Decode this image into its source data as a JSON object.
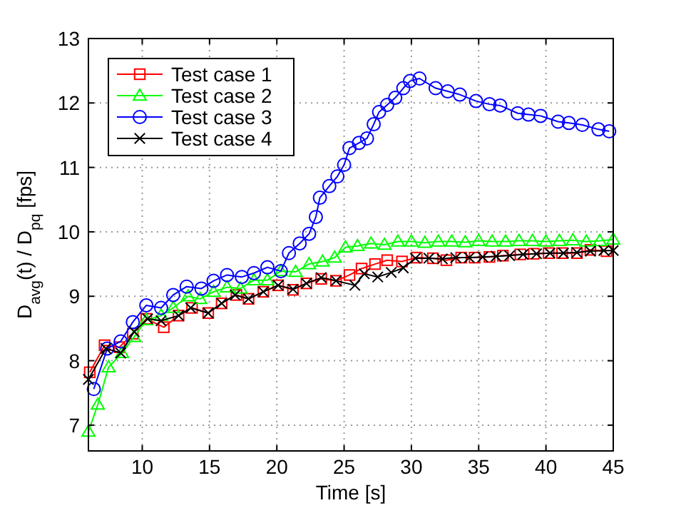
{
  "chart_data": {
    "type": "line",
    "xlabel": "Time [s]",
    "ylabel": "D$_{avg}$(t) / D$_{pq}$ [fps]",
    "xlim": [
      6,
      45
    ],
    "ylim": [
      6.6,
      13
    ],
    "xticks": [
      10,
      15,
      20,
      25,
      30,
      35,
      40,
      45
    ],
    "yticks": [
      7,
      8,
      9,
      10,
      11,
      12,
      13
    ],
    "grid": true,
    "legend": "top left",
    "series": [
      {
        "name": "Test case 1",
        "color": "#ff0000",
        "marker": "square",
        "x": [
          6.1,
          7.2,
          8.3,
          9.3,
          10.3,
          11.6,
          12.7,
          13.7,
          14.9,
          15.9,
          17.0,
          17.9,
          19.0,
          20.1,
          21.2,
          22.2,
          23.3,
          24.4,
          25.4,
          26.3,
          27.3,
          28.2,
          29.3,
          30.4,
          31.6,
          32.6,
          33.7,
          34.7,
          35.8,
          36.8,
          38.1,
          39.1,
          40.2,
          41.2,
          42.3,
          43.3,
          44.5
        ],
        "values": [
          7.82,
          8.24,
          8.21,
          8.42,
          8.65,
          8.52,
          8.7,
          8.82,
          8.74,
          8.89,
          9.02,
          8.96,
          9.07,
          9.17,
          9.1,
          9.2,
          9.27,
          9.24,
          9.33,
          9.43,
          9.5,
          9.56,
          9.54,
          9.6,
          9.59,
          9.56,
          9.6,
          9.6,
          9.61,
          9.63,
          9.65,
          9.66,
          9.67,
          9.67,
          9.67,
          9.72,
          9.7
        ]
      },
      {
        "name": "Test case 2",
        "color": "#00ff00",
        "marker": "triangle",
        "x": [
          6.0,
          6.7,
          7.5,
          8.5,
          9.4,
          10.3,
          11.4,
          12.3,
          13.4,
          14.3,
          15.3,
          16.3,
          17.3,
          18.3,
          19.3,
          20.3,
          21.4,
          22.4,
          23.4,
          24.3,
          25.1,
          26.0,
          27.0,
          28.0,
          29.0,
          30.0,
          31.0,
          32.0,
          33.0,
          34.0,
          35.0,
          36.0,
          37.0,
          38.0,
          39.0,
          40.0,
          41.0,
          42.0,
          43.0,
          44.0,
          45.0
        ],
        "values": [
          6.9,
          7.32,
          7.9,
          8.12,
          8.37,
          8.63,
          8.7,
          8.82,
          9.0,
          8.96,
          9.07,
          9.14,
          9.12,
          9.25,
          9.25,
          9.39,
          9.38,
          9.5,
          9.54,
          9.6,
          9.76,
          9.78,
          9.82,
          9.8,
          9.85,
          9.85,
          9.83,
          9.85,
          9.85,
          9.84,
          9.86,
          9.85,
          9.85,
          9.86,
          9.86,
          9.85,
          9.86,
          9.87,
          9.85,
          9.86,
          9.88
        ]
      },
      {
        "name": "Test case 3",
        "color": "#0000ff",
        "marker": "circle",
        "x": [
          6.4,
          7.4,
          8.4,
          9.3,
          10.3,
          11.4,
          12.3,
          13.3,
          14.4,
          15.3,
          16.3,
          17.4,
          18.3,
          19.3,
          20.3,
          20.9,
          21.7,
          22.4,
          22.9,
          23.2,
          23.9,
          24.5,
          25.0,
          25.4,
          26.1,
          26.7,
          27.2,
          27.6,
          28.2,
          28.8,
          29.4,
          29.9,
          30.6,
          31.8,
          32.7,
          33.6,
          34.8,
          35.8,
          36.6,
          37.9,
          38.7,
          39.6,
          40.9,
          41.7,
          42.7,
          43.9,
          44.7
        ],
        "values": [
          7.56,
          8.19,
          8.3,
          8.6,
          8.86,
          8.82,
          9.02,
          9.15,
          9.12,
          9.24,
          9.33,
          9.3,
          9.36,
          9.45,
          9.39,
          9.67,
          9.82,
          9.97,
          10.23,
          10.53,
          10.71,
          10.86,
          11.04,
          11.3,
          11.38,
          11.45,
          11.67,
          11.86,
          11.97,
          12.08,
          12.23,
          12.34,
          12.38,
          12.23,
          12.18,
          12.13,
          12.03,
          11.98,
          11.96,
          11.84,
          11.82,
          11.8,
          11.71,
          11.69,
          11.66,
          11.59,
          11.56
        ]
      },
      {
        "name": "Test case 4",
        "color": "#000000",
        "marker": "cross",
        "x": [
          6.0,
          7.3,
          8.4,
          9.4,
          10.4,
          11.4,
          12.7,
          13.6,
          14.9,
          15.9,
          16.9,
          17.9,
          19.0,
          20.1,
          21.2,
          22.2,
          23.3,
          24.4,
          25.8,
          26.5,
          27.5,
          28.5,
          29.4,
          30.3,
          31.3,
          32.3,
          33.3,
          34.3,
          35.3,
          36.3,
          37.3,
          38.3,
          39.3,
          40.3,
          41.3,
          42.3,
          43.3,
          44.3,
          45.0
        ],
        "values": [
          7.71,
          8.19,
          8.12,
          8.45,
          8.65,
          8.62,
          8.7,
          8.82,
          8.74,
          8.89,
          9.02,
          8.96,
          9.07,
          9.17,
          9.11,
          9.2,
          9.29,
          9.24,
          9.17,
          9.35,
          9.3,
          9.37,
          9.44,
          9.59,
          9.59,
          9.58,
          9.6,
          9.6,
          9.61,
          9.62,
          9.63,
          9.65,
          9.66,
          9.67,
          9.67,
          9.68,
          9.7,
          9.71,
          9.71
        ]
      }
    ]
  }
}
